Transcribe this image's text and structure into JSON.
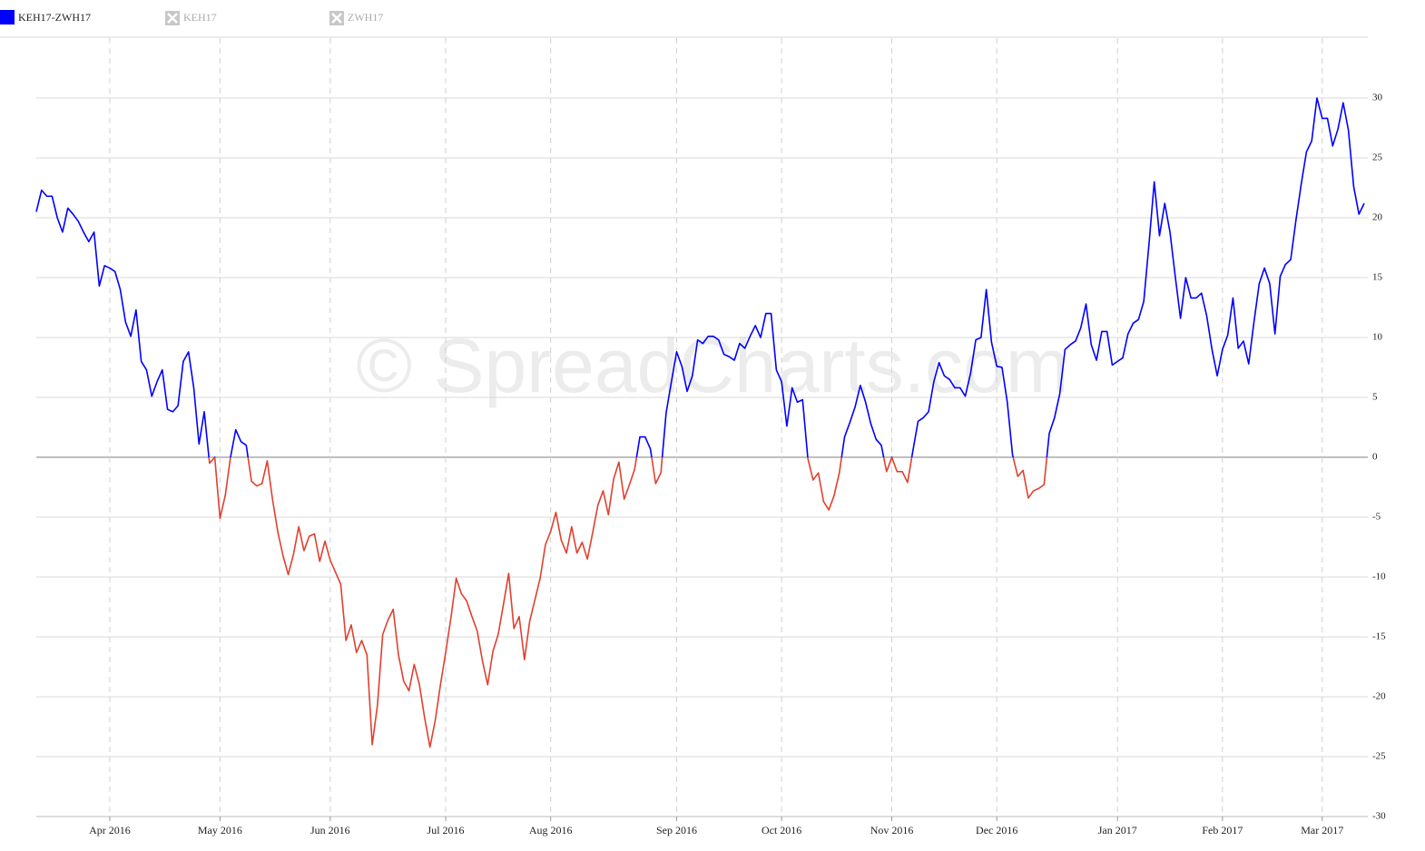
{
  "chart_data": {
    "type": "line",
    "watermark": "© SpreadCharts.com",
    "series": [
      {
        "name": "KEH17-ZWH17",
        "color": "#0000ff",
        "negative_color": "#e0402e",
        "values": [
          20.5,
          22.3,
          21.8,
          21.8,
          20,
          18.8,
          20.8,
          20.3,
          19.7,
          18.8,
          18,
          18.8,
          14.3,
          16,
          15.8,
          15.5,
          14,
          11.3,
          10.1,
          12.3,
          8,
          7.3,
          5.1,
          6.3,
          7.3,
          4,
          3.8,
          4.3,
          8,
          8.8,
          5.8,
          1.1,
          3.8,
          -0.5,
          0,
          -5.1,
          -3.2,
          0,
          2.3,
          1.3,
          1,
          -2,
          -2.4,
          -2.2,
          -0.3,
          -3.5,
          -6.2,
          -8.2,
          -9.8,
          -8.1,
          -5.8,
          -7.8,
          -6.6,
          -6.4,
          -8.7,
          -7,
          -8.6,
          -9.6,
          -10.6,
          -15.3,
          -14,
          -16.3,
          -15.3,
          -16.5,
          -24,
          -20.7,
          -14.8,
          -13.6,
          -12.7,
          -16.5,
          -18.7,
          -19.5,
          -17.3,
          -19,
          -21.8,
          -24.2,
          -22,
          -19,
          -16.3,
          -13.4,
          -10.1,
          -11.4,
          -12,
          -13.3,
          -14.5,
          -17,
          -19,
          -16.2,
          -14.8,
          -12.3,
          -9.7,
          -14.3,
          -13.3,
          -16.9,
          -13.7,
          -11.9,
          -10.1,
          -7.3,
          -6.2,
          -4.6,
          -6.9,
          -8,
          -5.8,
          -8,
          -7.1,
          -8.5,
          -6.3,
          -4,
          -2.8,
          -4.8,
          -1.8,
          -0.4,
          -3.5,
          -2.3,
          -1,
          1.7,
          1.7,
          0.7,
          -2.2,
          -1.3,
          3.7,
          6.3,
          8.8,
          7.6,
          5.5,
          6.8,
          9.8,
          9.5,
          10.1,
          10.1,
          9.8,
          8.6,
          8.4,
          8.1,
          9.5,
          9.1,
          10.1,
          11,
          10,
          12,
          12,
          7.3,
          6.3,
          2.6,
          5.8,
          4.6,
          4.8,
          -0.1,
          -1.9,
          -1.3,
          -3.7,
          -4.4,
          -3.2,
          -1.3,
          1.7,
          2.9,
          4.2,
          6,
          4.6,
          2.8,
          1.5,
          1,
          -1.2,
          0,
          -1.2,
          -1.2,
          -2.1,
          0.5,
          3,
          3.3,
          3.8,
          6.3,
          7.9,
          6.8,
          6.5,
          5.8,
          5.8,
          5.1,
          7,
          9.8,
          10,
          14,
          9.6,
          7.6,
          7.5,
          4.6,
          0.2,
          -1.6,
          -1.1,
          -3.4,
          -2.8,
          -2.6,
          -2.3,
          2,
          3.3,
          5.3,
          9,
          9.4,
          9.7,
          10.8,
          12.8,
          9.4,
          8.1,
          10.5,
          10.5,
          7.7,
          8,
          8.3,
          10.3,
          11.2,
          11.5,
          13,
          17.8,
          23,
          18.5,
          21.2,
          18.8,
          15.1,
          11.6,
          15,
          13.3,
          13.3,
          13.7,
          11.8,
          9,
          6.8,
          9,
          10.2,
          13.3,
          9.1,
          9.7,
          7.8,
          11.3,
          14.5,
          15.8,
          14.5,
          10.3,
          15.1,
          16.1,
          16.5,
          19.8,
          22.8,
          25.5,
          26.4,
          30,
          28.3,
          28.3,
          26,
          27.4,
          29.6,
          27.3,
          22.6,
          20.3,
          21.2
        ]
      }
    ],
    "disabled_series": [
      "KEH17",
      "ZWH17"
    ],
    "categories": [
      null,
      null,
      null,
      null,
      null,
      null,
      null,
      null,
      null,
      null,
      null,
      null,
      null,
      null,
      "Apr 2016",
      null,
      null,
      null,
      null,
      null,
      null,
      null,
      null,
      null,
      null,
      null,
      null,
      null,
      null,
      null,
      null,
      null,
      null,
      null,
      null,
      "May 2016",
      null,
      null,
      null,
      null,
      null,
      null,
      null,
      null,
      null,
      null,
      null,
      null,
      null,
      null,
      null,
      null,
      null,
      null,
      null,
      null,
      "Jun 2016",
      null,
      null,
      null,
      null,
      null,
      null,
      null,
      null,
      null,
      null,
      null,
      null,
      null,
      null,
      null,
      null,
      null,
      null,
      null,
      null,
      null,
      "Jul 2016",
      null,
      null,
      null,
      null,
      null,
      null,
      null,
      null,
      null,
      null,
      null,
      null,
      null,
      null,
      null,
      null,
      null,
      null,
      null,
      "Aug 2016",
      null,
      null,
      null,
      null,
      null,
      null,
      null,
      null,
      null,
      null,
      null,
      null,
      null,
      null,
      null,
      null,
      null,
      null,
      null,
      null,
      null,
      null,
      null,
      "Sep 2016",
      null,
      null,
      null,
      null,
      null,
      null,
      null,
      null,
      null,
      null,
      null,
      null,
      null,
      null,
      null,
      null,
      null,
      null,
      null,
      "Oct 2016",
      null,
      null,
      null,
      null,
      null,
      null,
      null,
      null,
      null,
      null,
      null,
      null,
      null,
      null,
      null,
      null,
      null,
      null,
      null,
      null,
      "Nov 2016",
      null,
      null,
      null,
      null,
      null,
      null,
      null,
      null,
      null,
      null,
      null,
      null,
      null,
      null,
      null,
      null,
      null,
      null,
      null,
      "Dec 2016",
      null,
      null,
      null,
      null,
      null,
      null,
      null,
      null,
      null,
      null,
      null,
      null,
      null,
      null,
      null,
      null,
      null,
      null,
      null,
      null,
      null,
      null,
      "Jan 2017",
      null,
      null,
      null,
      null,
      null,
      null,
      null,
      null,
      null,
      null,
      null,
      null,
      null,
      null,
      null,
      null,
      null,
      null,
      null,
      "Feb 2017",
      null,
      null,
      null,
      null,
      null,
      null,
      null,
      null,
      null,
      null,
      null,
      null,
      null,
      null,
      null,
      null,
      null,
      null,
      "Mar 2017",
      null,
      null,
      null,
      null,
      null,
      null,
      null,
      null
    ],
    "ylim": [
      -30,
      35
    ],
    "yticks": [
      -30,
      -25,
      -20,
      -15,
      -10,
      -5,
      0,
      5,
      10,
      15,
      20,
      25,
      30
    ],
    "grid": true,
    "legend": "top-left"
  }
}
